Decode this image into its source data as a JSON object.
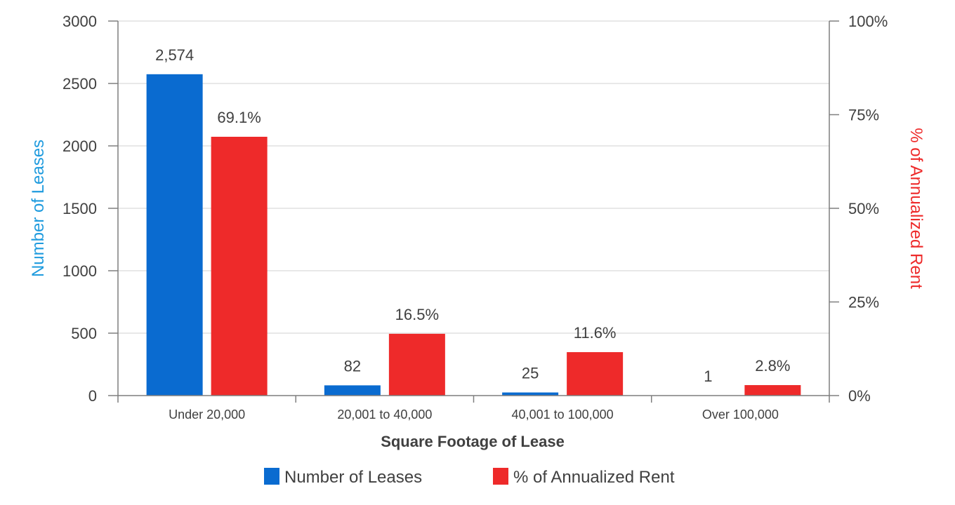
{
  "chart_data": {
    "type": "bar",
    "title": "",
    "xlabel": "Square Footage of Lease",
    "ylabel": "Number of Leases",
    "ylabel_right": "% of Annualized Rent",
    "categories": [
      "Under 20,000",
      "20,001 to 40,000",
      "40,001 to 100,000",
      "Over 100,000"
    ],
    "ylim": [
      0,
      3000
    ],
    "ylim_right": [
      0,
      100
    ],
    "yticks": [
      "0",
      "500",
      "1000",
      "1500",
      "2000",
      "2500",
      "3000"
    ],
    "yticks_right": [
      "0%",
      "25%",
      "50%",
      "75%",
      "100%"
    ],
    "grid": true,
    "legend_position": "bottom",
    "series": [
      {
        "name": "Number of Leases",
        "axis": "left",
        "color": "#0A6BD0",
        "values": [
          2574,
          82,
          25,
          1
        ],
        "labels": [
          "2,574",
          "82",
          "25",
          "1"
        ]
      },
      {
        "name": "% of Annualized Rent",
        "axis": "right",
        "color": "#EE2A2A",
        "values": [
          69.1,
          16.5,
          11.6,
          2.8
        ],
        "labels": [
          "69.1%",
          "16.5%",
          "11.6%",
          "2.8%"
        ]
      }
    ],
    "colors": {
      "left_axis_title": "#1F9BDE",
      "right_axis_title": "#EE2A2A",
      "text": "#404040",
      "axis_line": "#7F7F7F",
      "grid": "#E0E0E0"
    }
  }
}
